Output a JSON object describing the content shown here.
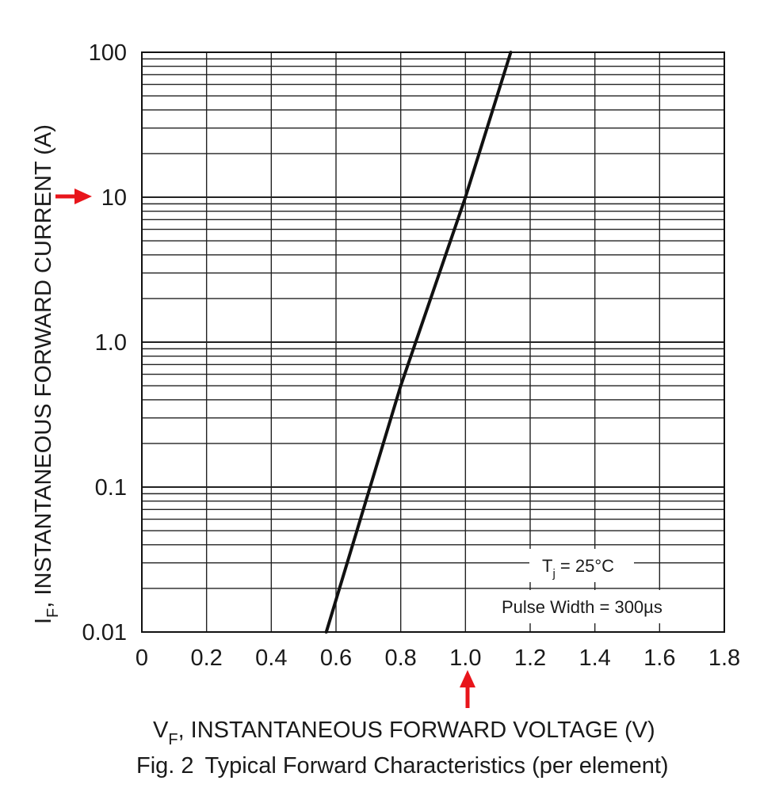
{
  "chart_data": {
    "type": "line",
    "title": "Fig. 2  Typical Forward Characteristics (per element)",
    "caption_fig": "Fig. 2",
    "caption_text": "Typical Forward Characteristics (per element)",
    "xlabel": {
      "symbol": "V",
      "sub": "F",
      "text": ", INSTANTANEOUS FORWARD VOLTAGE (V)"
    },
    "ylabel": {
      "symbol": "I",
      "sub": "F",
      "text": ", INSTANTANEOUS FORWARD CURRENT (A)"
    },
    "xlim": [
      0,
      1.8
    ],
    "ylim": [
      0.01,
      100
    ],
    "yscale": "log",
    "x_ticks": [
      "0",
      "0.2",
      "0.4",
      "0.6",
      "0.8",
      "1.0",
      "1.2",
      "1.4",
      "1.6",
      "1.8"
    ],
    "y_ticks": [
      "0.01",
      "0.1",
      "1.0",
      "10",
      "100"
    ],
    "grid": true,
    "series": [
      {
        "name": "Forward characteristic",
        "x": [
          0.57,
          0.8,
          1.0,
          1.14
        ],
        "y": [
          0.01,
          0.5,
          10,
          100
        ]
      }
    ],
    "annotations": {
      "tj": {
        "symbol": "T",
        "sub": "j",
        "text": " = 25°C"
      },
      "pulse": "Pulse Width = 300µs",
      "markers": [
        {
          "name": "y-marker",
          "axis": "y",
          "value": 10,
          "color": "#e8151b"
        },
        {
          "name": "x-marker",
          "axis": "x",
          "value": 1.0,
          "color": "#e8151b"
        }
      ]
    }
  }
}
